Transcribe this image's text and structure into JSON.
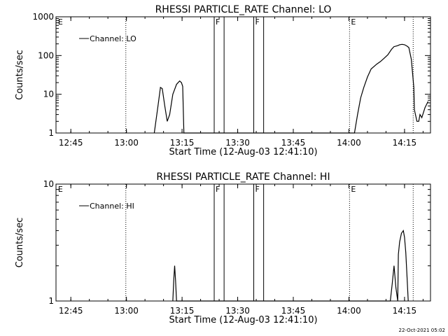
{
  "chart_data": [
    {
      "type": "line",
      "title": "RHESSI PARTICLE_RATE Channel: LO",
      "xlabel": "Start Time (12-Aug-03 12:41:10)",
      "ylabel": "Counts/sec",
      "yscale": "log",
      "ylim": [
        1,
        1000
      ],
      "ytick_labels": [
        "1",
        "10",
        "100",
        "1000"
      ],
      "xlim": [
        "12:41",
        "14:22"
      ],
      "xtick_labels": [
        "12:45",
        "13:00",
        "13:15",
        "13:30",
        "13:45",
        "14:00",
        "14:15"
      ],
      "legend": "top-left",
      "series": [
        {
          "name": "Channel: LO",
          "x": [
            "13:07:30",
            "13:08:30",
            "13:09:10",
            "13:09:40",
            "13:10:20",
            "13:11:00",
            "13:11:40",
            "13:12:30",
            "13:13:30",
            "13:14:20",
            "13:14:50",
            "13:15:10",
            "13:15:30",
            "14:01:30",
            "14:02:20",
            "14:03:10",
            "14:04:00",
            "14:05:00",
            "14:06:00",
            "14:07:30",
            "14:08:30",
            "14:09:30",
            "14:10:30",
            "14:11:30",
            "14:12:10",
            "14:12:40",
            "14:13:10",
            "14:13:40",
            "14:14:20",
            "14:15:00",
            "14:15:40",
            "14:16:10",
            "14:16:50",
            "14:17:30",
            "14:17:40",
            "14:18:20",
            "14:18:50",
            "14:19:10",
            "14:19:40",
            "14:20:30",
            "14:21:20"
          ],
          "values": [
            1,
            5,
            15,
            14,
            5,
            2,
            3,
            10,
            18,
            22,
            20,
            16,
            1,
            1,
            3,
            8,
            15,
            28,
            45,
            60,
            70,
            85,
            105,
            145,
            170,
            175,
            180,
            190,
            195,
            190,
            175,
            160,
            80,
            15,
            4,
            2,
            2,
            3,
            2.5,
            4.5,
            6.5
          ]
        }
      ],
      "annotations": [
        {
          "label": "E",
          "time": "12:41:10"
        },
        {
          "label": "F",
          "time": "13:23:40"
        },
        {
          "label": "F",
          "time": "13:34:20"
        },
        {
          "label": "E",
          "time": "14:00:10"
        }
      ],
      "solid_markers": [
        "13:23:40",
        "13:26:20",
        "13:34:20",
        "13:37:00"
      ],
      "dotted_markers": [
        "12:59:50",
        "14:00:10",
        "14:17:20"
      ]
    },
    {
      "type": "line",
      "title": "RHESSI PARTICLE_RATE Channel: HI",
      "xlabel": "Start Time (12-Aug-03 12:41:10)",
      "ylabel": "Counts/sec",
      "yscale": "log",
      "ylim": [
        1,
        10
      ],
      "ytick_labels": [
        "1",
        "10"
      ],
      "xlim": [
        "12:41",
        "14:22"
      ],
      "xtick_labels": [
        "12:45",
        "13:00",
        "13:15",
        "13:30",
        "13:45",
        "14:00",
        "14:15"
      ],
      "legend": "top-left",
      "series": [
        {
          "name": "Channel: HI",
          "x": [
            "13:12:30",
            "13:12:45",
            "13:13:00",
            "13:13:15",
            "13:13:30",
            "13:13:45",
            "14:11:10",
            "14:11:40",
            "14:12:10",
            "14:12:40",
            "14:13:10",
            "14:13:20",
            "14:13:40",
            "14:14:10",
            "14:14:40",
            "14:15:00",
            "14:15:20",
            "14:15:40",
            "14:16:00"
          ],
          "values": [
            1,
            1.5,
            2,
            1.5,
            1,
            1,
            1,
            1.4,
            2,
            1.3,
            1,
            2.5,
            3.2,
            3.8,
            4,
            3.5,
            2.6,
            1.6,
            1
          ]
        }
      ],
      "annotations": [
        {
          "label": "E",
          "time": "12:41:10"
        },
        {
          "label": "F",
          "time": "13:23:40"
        },
        {
          "label": "F",
          "time": "13:34:20"
        },
        {
          "label": "E",
          "time": "14:00:10"
        }
      ],
      "solid_markers": [
        "13:23:40",
        "13:26:20",
        "13:34:20",
        "13:37:00"
      ],
      "dotted_markers": [
        "12:59:50",
        "14:00:10",
        "14:17:20"
      ]
    }
  ],
  "footer": {
    "timestamp": "22-Oct-2021 05:02"
  }
}
